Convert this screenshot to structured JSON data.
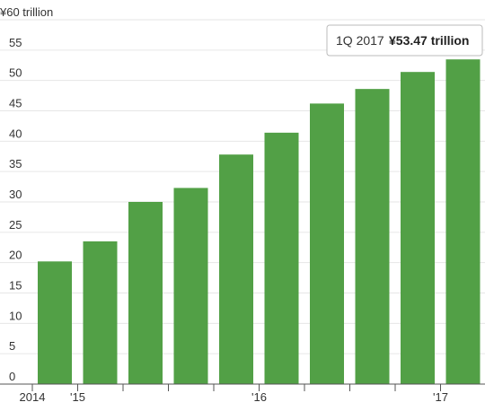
{
  "chart_data": {
    "type": "bar",
    "categories": [
      "2014",
      "'15",
      null,
      null,
      null,
      "'16",
      null,
      null,
      null,
      "'17"
    ],
    "values": [
      20.2,
      23.5,
      30.0,
      32.3,
      37.8,
      41.4,
      46.2,
      48.6,
      51.4,
      53.47
    ],
    "color": "#52a046",
    "ylim": [
      0,
      60
    ],
    "yticks": [
      0,
      5,
      10,
      15,
      20,
      25,
      30,
      35,
      40,
      45,
      50,
      55,
      {
        "value": 60,
        "label": "¥60 trillion"
      }
    ],
    "grid": true,
    "tooltip": {
      "label": "1Q 2017",
      "value": "¥53.47 trillion"
    }
  }
}
